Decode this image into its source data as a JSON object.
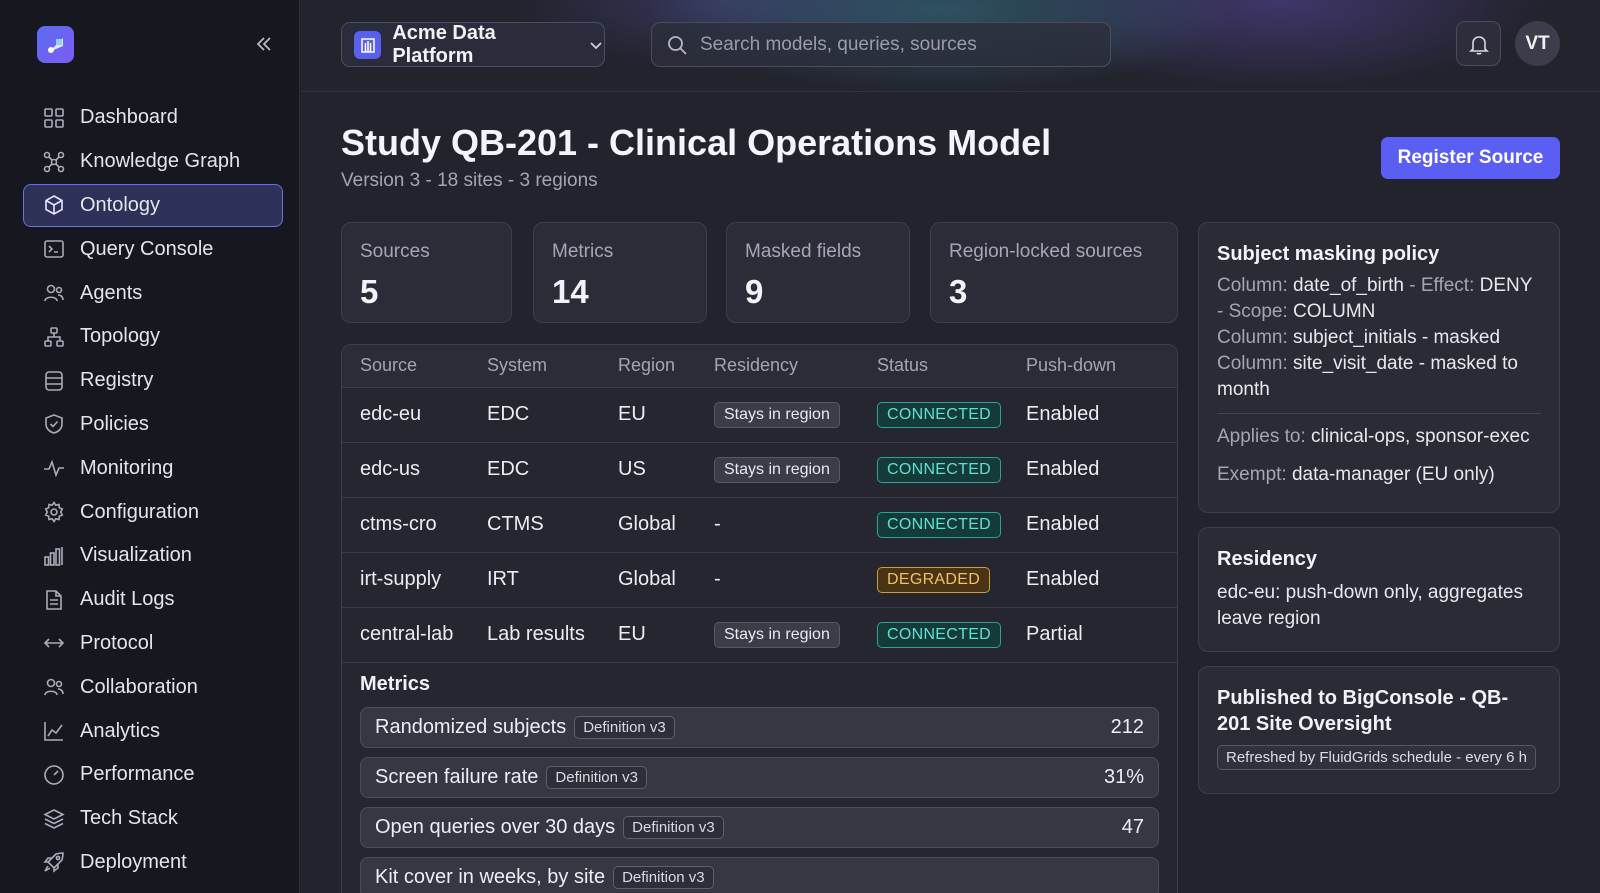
{
  "sidebar": {
    "items": [
      {
        "label": "Dashboard",
        "icon": "grid-icon"
      },
      {
        "label": "Knowledge Graph",
        "icon": "graph-icon"
      },
      {
        "label": "Ontology",
        "icon": "cube-icon",
        "active": true
      },
      {
        "label": "Query Console",
        "icon": "terminal-icon"
      },
      {
        "label": "Agents",
        "icon": "users-icon"
      },
      {
        "label": "Topology",
        "icon": "hierarchy-icon"
      },
      {
        "label": "Registry",
        "icon": "database-icon"
      },
      {
        "label": "Policies",
        "icon": "shield-icon"
      },
      {
        "label": "Monitoring",
        "icon": "activity-icon"
      },
      {
        "label": "Configuration",
        "icon": "gear-icon"
      },
      {
        "label": "Visualization",
        "icon": "bar-chart-icon"
      },
      {
        "label": "Audit Logs",
        "icon": "document-icon"
      },
      {
        "label": "Protocol",
        "icon": "arrows-icon"
      },
      {
        "label": "Collaboration",
        "icon": "users-icon"
      },
      {
        "label": "Analytics",
        "icon": "line-chart-icon"
      },
      {
        "label": "Performance",
        "icon": "gauge-icon"
      },
      {
        "label": "Tech Stack",
        "icon": "layers-icon"
      },
      {
        "label": "Deployment",
        "icon": "rocket-icon"
      }
    ]
  },
  "header": {
    "workspace": "Acme Data Platform",
    "search_placeholder": "Search models, queries, sources",
    "avatar_initials": "VT"
  },
  "page": {
    "title": "Study QB-201 - Clinical Operations Model",
    "subtitle": "Version 3 - 18 sites - 3 regions",
    "register_label": "Register Source"
  },
  "stats": [
    {
      "label": "Sources",
      "value": "5"
    },
    {
      "label": "Metrics",
      "value": "14"
    },
    {
      "label": "Masked fields",
      "value": "9"
    },
    {
      "label": "Region-locked sources",
      "value": "3"
    }
  ],
  "sources_table": {
    "columns": [
      "Source",
      "System",
      "Region",
      "Residency",
      "Status",
      "Push-down"
    ],
    "rows": [
      {
        "source": "edc-eu",
        "system": "EDC",
        "region": "EU",
        "residency": "Stays in region",
        "status": "CONNECTED",
        "pushdown": "Enabled"
      },
      {
        "source": "edc-us",
        "system": "EDC",
        "region": "US",
        "residency": "Stays in region",
        "status": "CONNECTED",
        "pushdown": "Enabled"
      },
      {
        "source": "ctms-cro",
        "system": "CTMS",
        "region": "Global",
        "residency": "-",
        "status": "CONNECTED",
        "pushdown": "Enabled"
      },
      {
        "source": "irt-supply",
        "system": "IRT",
        "region": "Global",
        "residency": "-",
        "status": "DEGRADED",
        "pushdown": "Enabled"
      },
      {
        "source": "central-lab",
        "system": "Lab results",
        "region": "EU",
        "residency": "Stays in region",
        "status": "CONNECTED",
        "pushdown": "Partial"
      }
    ]
  },
  "metrics": {
    "title": "Metrics",
    "items": [
      {
        "name": "Randomized subjects",
        "definition": "Definition v3",
        "value": "212"
      },
      {
        "name": "Screen failure rate",
        "definition": "Definition v3",
        "value": "31%"
      },
      {
        "name": "Open queries over 30 days",
        "definition": "Definition v3",
        "value": "47"
      },
      {
        "name": "Kit cover in weeks, by site",
        "definition": "Definition v3",
        "value": ""
      }
    ]
  },
  "masking_policy": {
    "title": "Subject masking policy",
    "line1_label": "Column: ",
    "line1_value": "date_of_birth",
    "line1_effect_label": " - Effect: ",
    "line1_effect_value": "DENY",
    "line1_scope_label": "- Scope: ",
    "line1_scope_value": "COLUMN",
    "line2_label": "Column: ",
    "line2_value": "subject_initials - masked",
    "line3_label": "Column: ",
    "line3_value": "site_visit_date - masked to month",
    "applies_label": "Applies to: ",
    "applies_value": "clinical-ops, sponsor-exec",
    "exempt_label": "Exempt: ",
    "exempt_value": "data-manager (EU only)"
  },
  "residency": {
    "title": "Residency",
    "text": "edc-eu: push-down only, aggregates leave region"
  },
  "published": {
    "title": "Published to BigConsole - QB-201 Site Oversight",
    "refresh": "Refreshed by FluidGrids schedule - every 6 h"
  },
  "colors": {
    "accent": "#5a5ef2",
    "connected": "#5fe0d2",
    "degraded": "#f1c066"
  }
}
